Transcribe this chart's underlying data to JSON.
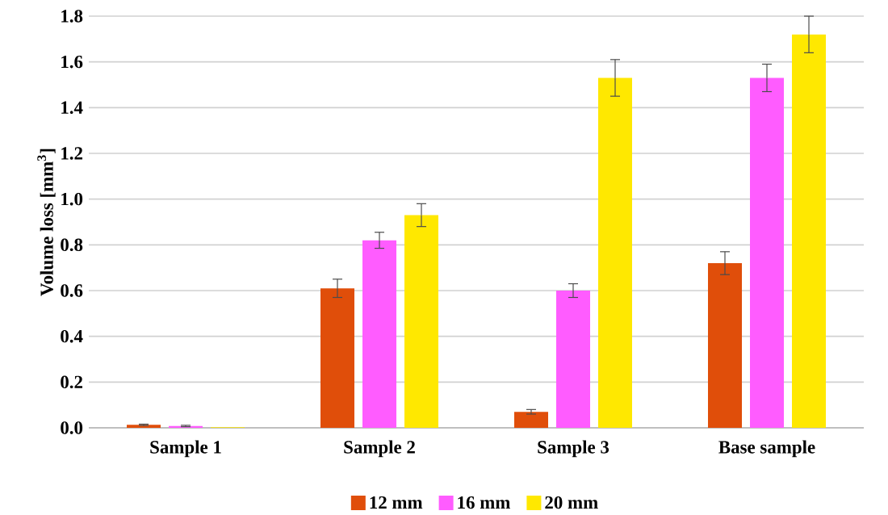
{
  "chart_data": {
    "type": "bar",
    "ylabel": "Volume loss [mm$^{3}$]",
    "categories": [
      "Sample 1",
      "Sample 2",
      "Sample 3",
      "Base sample"
    ],
    "series": [
      {
        "name": "12 mm",
        "color": "#e04e0a",
        "values": [
          0.013,
          0.61,
          0.07,
          0.72
        ],
        "errors": [
          0.003,
          0.04,
          0.01,
          0.05
        ]
      },
      {
        "name": "16 mm",
        "color": "#ff5cff",
        "values": [
          0.008,
          0.82,
          0.6,
          1.53
        ],
        "errors": [
          0.003,
          0.035,
          0.03,
          0.06
        ]
      },
      {
        "name": "20 mm",
        "color": "#ffe800",
        "values": [
          0.003,
          0.93,
          1.53,
          1.72
        ],
        "errors": [
          null,
          0.05,
          0.08,
          0.08
        ]
      }
    ],
    "ylim": [
      0,
      1.8
    ],
    "yticks": [
      {
        "value": 0,
        "label": "0.0"
      },
      0.2,
      0.4,
      0.6,
      0.8,
      {
        "value": 1.0,
        "label": "1.0"
      },
      1.2,
      1.4,
      1.6,
      1.8
    ],
    "grid": "y",
    "legend": "bottom"
  }
}
